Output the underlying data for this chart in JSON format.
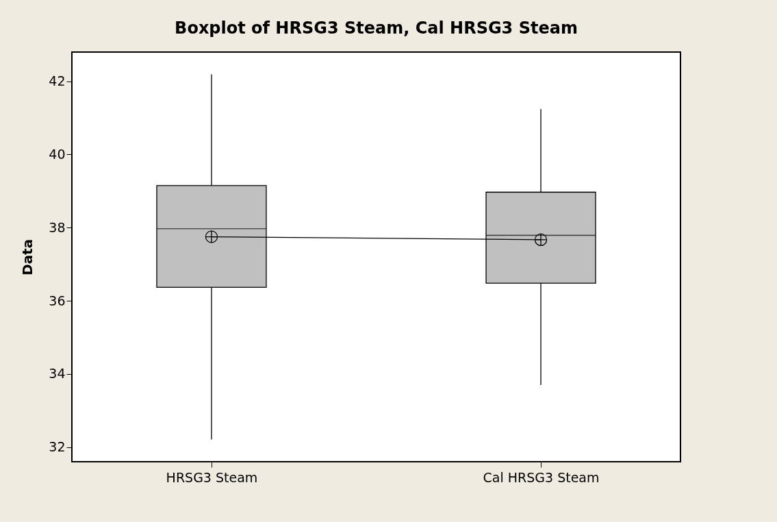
{
  "chart_data": {
    "type": "box",
    "title": "Boxplot of HRSG3 Steam, Cal HRSG3 Steam",
    "ylabel": "Data",
    "categories": [
      "HRSG3 Steam",
      "Cal HRSG3 Steam"
    ],
    "boxes": [
      {
        "low": 32.21,
        "q1": 36.37,
        "median": 37.97,
        "q3": 39.15,
        "high": 42.19,
        "mean": 37.75
      },
      {
        "low": 33.7,
        "q1": 36.48,
        "median": 37.79,
        "q3": 38.97,
        "high": 41.24,
        "mean": 37.67
      }
    ],
    "series": [
      {
        "type": "line",
        "values": [
          37.75,
          37.67
        ]
      }
    ],
    "ylim": [
      31.6,
      42.8
    ],
    "yticks": [
      32,
      34,
      36,
      38,
      40,
      42
    ]
  }
}
